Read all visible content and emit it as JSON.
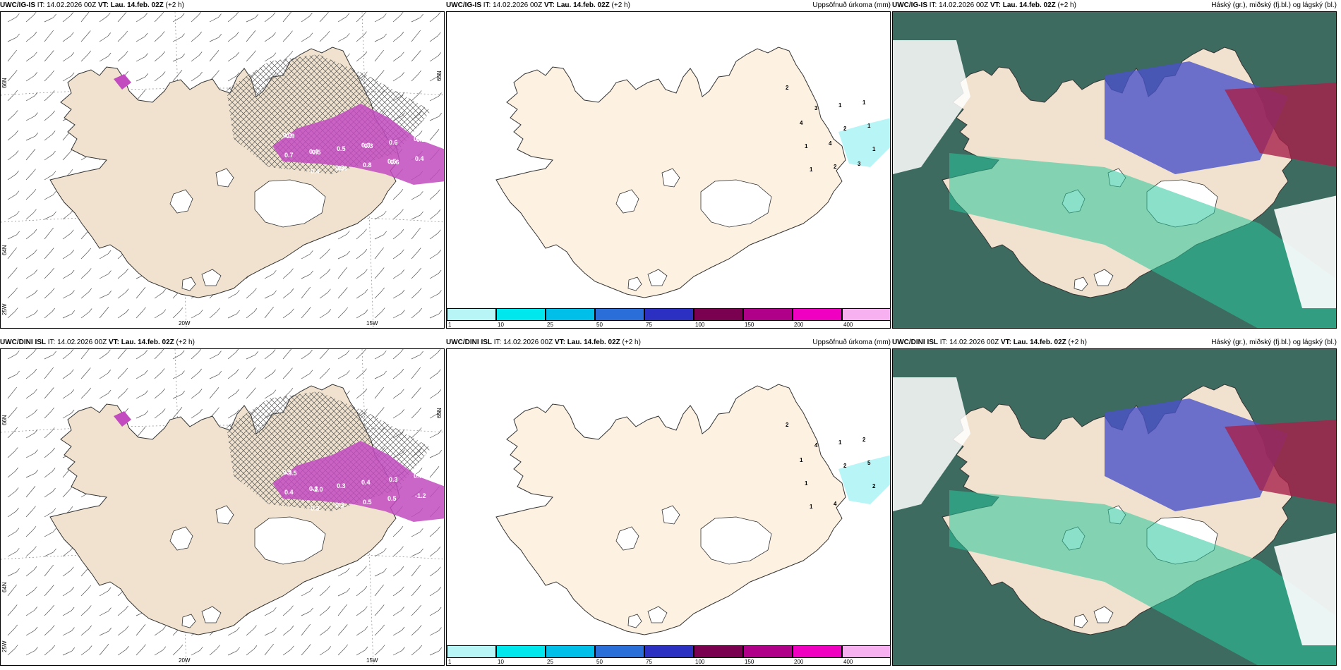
{
  "colors": {
    "land": "#f0e2cf",
    "land_light": "#fdf1e2",
    "coast": "#333333",
    "precip": "#c24bc0",
    "cloud_dark": "#3d6b60",
    "cloud_green": "#29c79a",
    "cloud_blue": "#4a52c8",
    "cloud_red": "#a8204a",
    "precip_legend": [
      "#b8f5f7",
      "#00e8ee",
      "#00bfe8",
      "#2a6fd9",
      "#2b2fc2",
      "#7a0050",
      "#b0008a",
      "#f000c0",
      "#f7b0f0"
    ]
  },
  "panels": [
    {
      "title_model": "UWC/IG-IS",
      "title_it": " IT: 14.02.2026 00Z ",
      "title_vt_label": "VT:",
      "title_vt": " Lau. 14.feb. 02Z",
      "title_step": " (+2 h)",
      "right_title": "",
      "type": "wind",
      "labels": [
        "0.3",
        "0.4",
        "0.3",
        "0.3",
        "0.5",
        "0.6",
        "0.7",
        "0.4",
        "0.5",
        "0.8",
        "0.6",
        "0.4",
        "0.9",
        "0.5",
        "0.4",
        "0.3",
        "0.6",
        "0.2"
      ],
      "ticks": {
        "lat1": "66N",
        "lat2": "64N",
        "lat1r": "65N",
        "lon1": "20W",
        "lon2": "15W",
        "lonL": "25W"
      }
    },
    {
      "title_model": "UWC/IG-IS",
      "title_it": " IT: 14.02.2026 00Z ",
      "title_vt_label": "VT:",
      "title_vt": " Lau. 14.feb. 02Z",
      "title_step": " (+2 h)",
      "right_title": "Uppsöfnuð úrkoma (mm)",
      "type": "precip",
      "labels": [
        "2",
        "3",
        "2",
        "1",
        "1",
        "1",
        "1",
        "1",
        "2",
        "1",
        "4",
        "4",
        "3"
      ],
      "legend": [
        "1",
        "10",
        "25",
        "50",
        "75",
        "100",
        "150",
        "200",
        "400"
      ]
    },
    {
      "title_model": "UWC/IG-IS",
      "title_it": " IT: 14.02.2026 00Z ",
      "title_vt_label": "VT:",
      "title_vt": " Lau. 14.feb. 02Z",
      "title_step": " (+2 h)",
      "right_title": "Háský (gr.), miðský (fj.bl.) og lágský (bl.)",
      "type": "cloud"
    },
    {
      "title_model": "UWC/DINI ISL",
      "title_it": " IT: 14.02.2026 00Z ",
      "title_vt_label": "VT:",
      "title_vt": " Lau. 14.feb. 02Z",
      "title_step": " (+2 h)",
      "right_title": "",
      "type": "wind",
      "labels": [
        "0.4",
        "0.3",
        "0.3",
        "0.4",
        "0.5",
        "0.7",
        "0.4",
        "0.3",
        "0.3",
        "0.5",
        "0.3",
        "-1.2",
        "-2.5",
        "-2.0"
      ],
      "ticks": {
        "lat1": "66N",
        "lat2": "64N",
        "lat1r": "65N",
        "lon1": "20W",
        "lon2": "15W",
        "lonL": "25W"
      }
    },
    {
      "title_model": "UWC/DINI ISL",
      "title_it": " IT: 14.02.2026 00Z ",
      "title_vt_label": "VT:",
      "title_vt": " Lau. 14.feb. 02Z",
      "title_step": " (+2 h)",
      "right_title": "Uppsöfnuð úrkoma (mm)",
      "type": "precip",
      "labels": [
        "2",
        "4",
        "2",
        "2",
        "1",
        "1",
        "5",
        "1",
        "4",
        "2",
        "1"
      ],
      "legend": [
        "1",
        "10",
        "25",
        "50",
        "75",
        "100",
        "150",
        "200",
        "400"
      ]
    },
    {
      "title_model": "UWC/DINI ISL",
      "title_it": " IT: 14.02.2026 00Z ",
      "title_vt_label": "VT:",
      "title_vt": " Lau. 14.feb. 02Z",
      "title_step": " (+2 h)",
      "right_title": "Háský (gr.), miðský (fj.bl.) og lágský (bl.)",
      "type": "cloud"
    }
  ]
}
